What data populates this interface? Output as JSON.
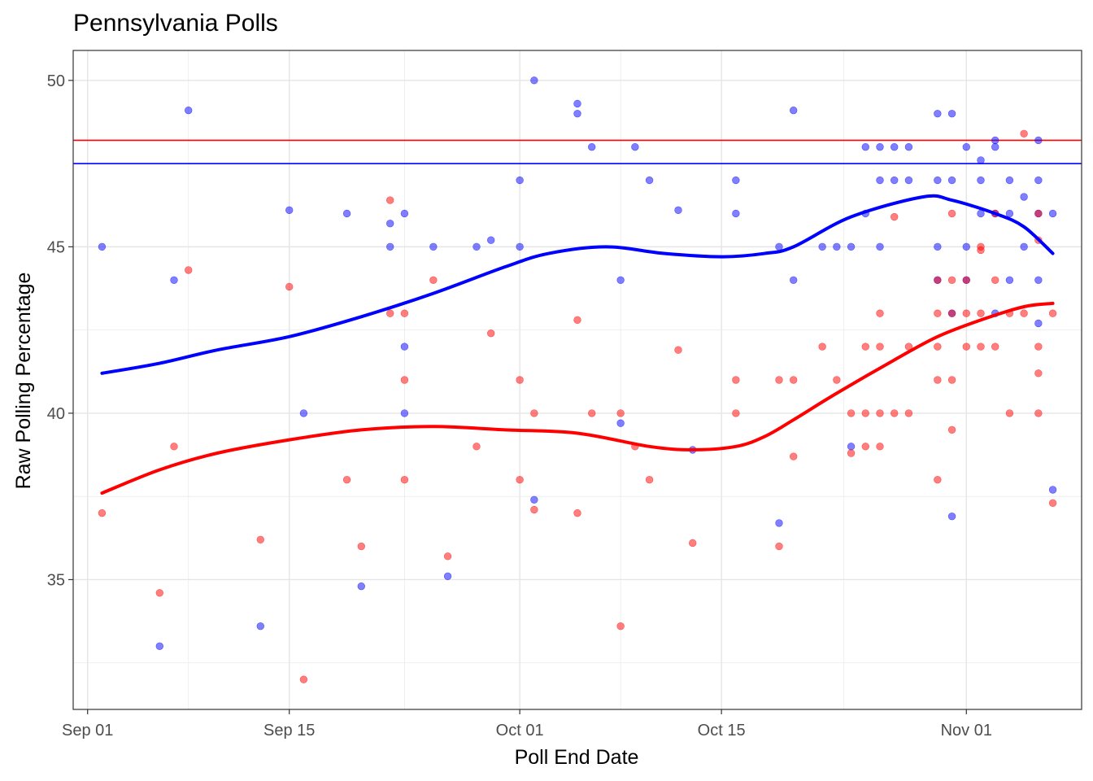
{
  "chart_data": {
    "type": "scatter",
    "title": "Pennsylvania Polls",
    "xlabel": "Poll End Date",
    "ylabel": "Raw Polling Percentage",
    "x_axis_type": "date",
    "xlim": [
      "2020-08-31",
      "2020-11-09"
    ],
    "ylim": [
      31.1,
      50.9
    ],
    "x_ticks": [
      {
        "date": "2020-09-01",
        "label": "Sep 01"
      },
      {
        "date": "2020-09-15",
        "label": "Sep 15"
      },
      {
        "date": "2020-10-01",
        "label": "Oct 01"
      },
      {
        "date": "2020-10-15",
        "label": "Oct 15"
      },
      {
        "date": "2020-11-01",
        "label": "Nov 01"
      }
    ],
    "y_ticks": [
      35,
      40,
      45,
      50
    ],
    "grid": true,
    "legend": "none",
    "colors": {
      "blue": "#0000ff",
      "red": "#ff0000"
    },
    "reference_lines": [
      {
        "color": "#ff0000",
        "y": 48.2
      },
      {
        "color": "#0000ff",
        "y": 47.5
      }
    ],
    "series": [
      {
        "color": "#0000ff",
        "points": [
          [
            "2020-09-02",
            45.0
          ],
          [
            "2020-09-06",
            33.0
          ],
          [
            "2020-09-07",
            44.0
          ],
          [
            "2020-09-08",
            49.1
          ],
          [
            "2020-09-13",
            33.6
          ],
          [
            "2020-09-15",
            46.1
          ],
          [
            "2020-09-16",
            40.0
          ],
          [
            "2020-09-19",
            46.0
          ],
          [
            "2020-09-20",
            34.8
          ],
          [
            "2020-09-22",
            45.0
          ],
          [
            "2020-09-22",
            45.7
          ],
          [
            "2020-09-23",
            46.0
          ],
          [
            "2020-09-23",
            42.0
          ],
          [
            "2020-09-23",
            40.0
          ],
          [
            "2020-09-25",
            45.0
          ],
          [
            "2020-09-26",
            35.1
          ],
          [
            "2020-09-28",
            45.0
          ],
          [
            "2020-09-29",
            45.2
          ],
          [
            "2020-10-01",
            47.0
          ],
          [
            "2020-10-01",
            45.0
          ],
          [
            "2020-10-02",
            50.0
          ],
          [
            "2020-10-02",
            37.4
          ],
          [
            "2020-10-05",
            49.3
          ],
          [
            "2020-10-05",
            49.0
          ],
          [
            "2020-10-06",
            48.0
          ],
          [
            "2020-10-08",
            44.0
          ],
          [
            "2020-10-08",
            39.7
          ],
          [
            "2020-10-09",
            48.0
          ],
          [
            "2020-10-10",
            47.0
          ],
          [
            "2020-10-12",
            46.1
          ],
          [
            "2020-10-13",
            38.9
          ],
          [
            "2020-10-16",
            47.0
          ],
          [
            "2020-10-16",
            46.0
          ],
          [
            "2020-10-19",
            45.0
          ],
          [
            "2020-10-19",
            36.7
          ],
          [
            "2020-10-20",
            49.1
          ],
          [
            "2020-10-20",
            44.0
          ],
          [
            "2020-10-22",
            45.0
          ],
          [
            "2020-10-23",
            45.0
          ],
          [
            "2020-10-24",
            45.0
          ],
          [
            "2020-10-24",
            39.0
          ],
          [
            "2020-10-25",
            48.0
          ],
          [
            "2020-10-25",
            46.0
          ],
          [
            "2020-10-26",
            48.0
          ],
          [
            "2020-10-26",
            47.0
          ],
          [
            "2020-10-26",
            45.0
          ],
          [
            "2020-10-27",
            48.0
          ],
          [
            "2020-10-27",
            47.0
          ],
          [
            "2020-10-28",
            48.0
          ],
          [
            "2020-10-28",
            47.0
          ],
          [
            "2020-10-30",
            49.0
          ],
          [
            "2020-10-30",
            47.0
          ],
          [
            "2020-10-30",
            45.0
          ],
          [
            "2020-10-30",
            44.0
          ],
          [
            "2020-10-31",
            49.0
          ],
          [
            "2020-10-31",
            47.0
          ],
          [
            "2020-10-31",
            43.0
          ],
          [
            "2020-10-31",
            36.9
          ],
          [
            "2020-11-01",
            48.0
          ],
          [
            "2020-11-01",
            45.0
          ],
          [
            "2020-11-01",
            44.0
          ],
          [
            "2020-11-02",
            47.6
          ],
          [
            "2020-11-02",
            47.0
          ],
          [
            "2020-11-02",
            46.0
          ],
          [
            "2020-11-03",
            48.2
          ],
          [
            "2020-11-03",
            48.0
          ],
          [
            "2020-11-03",
            46.0
          ],
          [
            "2020-11-03",
            43.0
          ],
          [
            "2020-11-04",
            47.0
          ],
          [
            "2020-11-04",
            46.0
          ],
          [
            "2020-11-04",
            44.0
          ],
          [
            "2020-11-05",
            46.5
          ],
          [
            "2020-11-05",
            45.0
          ],
          [
            "2020-11-06",
            48.2
          ],
          [
            "2020-11-06",
            47.0
          ],
          [
            "2020-11-06",
            46.0
          ],
          [
            "2020-11-06",
            44.0
          ],
          [
            "2020-11-06",
            42.7
          ],
          [
            "2020-11-07",
            46.0
          ],
          [
            "2020-11-07",
            37.7
          ]
        ],
        "trend": [
          [
            "2020-09-02",
            41.2
          ],
          [
            "2020-09-06",
            41.5
          ],
          [
            "2020-09-10",
            41.9
          ],
          [
            "2020-09-15",
            42.3
          ],
          [
            "2020-09-20",
            42.9
          ],
          [
            "2020-09-25",
            43.6
          ],
          [
            "2020-09-30",
            44.4
          ],
          [
            "2020-10-03",
            44.8
          ],
          [
            "2020-10-07",
            45.0
          ],
          [
            "2020-10-11",
            44.8
          ],
          [
            "2020-10-15",
            44.7
          ],
          [
            "2020-10-18",
            44.8
          ],
          [
            "2020-10-20",
            45.0
          ],
          [
            "2020-10-24",
            45.9
          ],
          [
            "2020-10-29",
            46.5
          ],
          [
            "2020-10-31",
            46.4
          ],
          [
            "2020-11-03",
            46.0
          ],
          [
            "2020-11-05",
            45.6
          ],
          [
            "2020-11-07",
            44.8
          ]
        ]
      },
      {
        "color": "#ff0000",
        "points": [
          [
            "2020-09-02",
            37.0
          ],
          [
            "2020-09-06",
            34.6
          ],
          [
            "2020-09-07",
            39.0
          ],
          [
            "2020-09-08",
            44.3
          ],
          [
            "2020-09-13",
            36.2
          ],
          [
            "2020-09-15",
            43.8
          ],
          [
            "2020-09-16",
            32.0
          ],
          [
            "2020-09-19",
            38.0
          ],
          [
            "2020-09-20",
            36.0
          ],
          [
            "2020-09-22",
            46.4
          ],
          [
            "2020-09-22",
            43.0
          ],
          [
            "2020-09-23",
            43.0
          ],
          [
            "2020-09-23",
            41.0
          ],
          [
            "2020-09-23",
            38.0
          ],
          [
            "2020-09-25",
            44.0
          ],
          [
            "2020-09-26",
            35.7
          ],
          [
            "2020-09-28",
            39.0
          ],
          [
            "2020-09-29",
            42.4
          ],
          [
            "2020-10-01",
            41.0
          ],
          [
            "2020-10-01",
            38.0
          ],
          [
            "2020-10-02",
            40.0
          ],
          [
            "2020-10-02",
            37.1
          ],
          [
            "2020-10-05",
            42.8
          ],
          [
            "2020-10-05",
            37.0
          ],
          [
            "2020-10-06",
            40.0
          ],
          [
            "2020-10-08",
            40.0
          ],
          [
            "2020-10-08",
            33.6
          ],
          [
            "2020-10-09",
            39.0
          ],
          [
            "2020-10-10",
            38.0
          ],
          [
            "2020-10-12",
            41.9
          ],
          [
            "2020-10-13",
            36.1
          ],
          [
            "2020-10-16",
            41.0
          ],
          [
            "2020-10-16",
            40.0
          ],
          [
            "2020-10-19",
            41.0
          ],
          [
            "2020-10-19",
            36.0
          ],
          [
            "2020-10-20",
            41.0
          ],
          [
            "2020-10-20",
            38.7
          ],
          [
            "2020-10-22",
            42.0
          ],
          [
            "2020-10-23",
            41.0
          ],
          [
            "2020-10-24",
            40.0
          ],
          [
            "2020-10-24",
            38.8
          ],
          [
            "2020-10-25",
            42.0
          ],
          [
            "2020-10-25",
            40.0
          ],
          [
            "2020-10-25",
            39.0
          ],
          [
            "2020-10-26",
            43.0
          ],
          [
            "2020-10-26",
            42.0
          ],
          [
            "2020-10-26",
            40.0
          ],
          [
            "2020-10-26",
            39.0
          ],
          [
            "2020-10-27",
            45.9
          ],
          [
            "2020-10-27",
            40.0
          ],
          [
            "2020-10-28",
            42.0
          ],
          [
            "2020-10-28",
            40.0
          ],
          [
            "2020-10-30",
            44.0
          ],
          [
            "2020-10-30",
            43.0
          ],
          [
            "2020-10-30",
            42.0
          ],
          [
            "2020-10-30",
            41.0
          ],
          [
            "2020-10-30",
            38.0
          ],
          [
            "2020-10-31",
            46.0
          ],
          [
            "2020-10-31",
            44.0
          ],
          [
            "2020-10-31",
            43.0
          ],
          [
            "2020-10-31",
            41.0
          ],
          [
            "2020-10-31",
            39.5
          ],
          [
            "2020-11-01",
            44.0
          ],
          [
            "2020-11-01",
            43.0
          ],
          [
            "2020-11-01",
            42.0
          ],
          [
            "2020-11-02",
            45.0
          ],
          [
            "2020-11-02",
            44.9
          ],
          [
            "2020-11-02",
            43.0
          ],
          [
            "2020-11-02",
            42.0
          ],
          [
            "2020-11-03",
            46.0
          ],
          [
            "2020-11-03",
            44.0
          ],
          [
            "2020-11-03",
            42.0
          ],
          [
            "2020-11-04",
            43.0
          ],
          [
            "2020-11-04",
            40.0
          ],
          [
            "2020-11-05",
            48.4
          ],
          [
            "2020-11-05",
            43.0
          ],
          [
            "2020-11-06",
            46.0
          ],
          [
            "2020-11-06",
            45.2
          ],
          [
            "2020-11-06",
            42.0
          ],
          [
            "2020-11-06",
            41.2
          ],
          [
            "2020-11-06",
            40.0
          ],
          [
            "2020-11-07",
            43.0
          ],
          [
            "2020-11-07",
            37.3
          ]
        ],
        "trend": [
          [
            "2020-09-02",
            37.6
          ],
          [
            "2020-09-06",
            38.3
          ],
          [
            "2020-09-10",
            38.8
          ],
          [
            "2020-09-15",
            39.2
          ],
          [
            "2020-09-20",
            39.5
          ],
          [
            "2020-09-25",
            39.6
          ],
          [
            "2020-09-30",
            39.5
          ],
          [
            "2020-10-05",
            39.4
          ],
          [
            "2020-10-10",
            39.0
          ],
          [
            "2020-10-13",
            38.9
          ],
          [
            "2020-10-16",
            39.0
          ],
          [
            "2020-10-18",
            39.3
          ],
          [
            "2020-10-20",
            39.8
          ],
          [
            "2020-10-23",
            40.6
          ],
          [
            "2020-10-27",
            41.6
          ],
          [
            "2020-10-30",
            42.3
          ],
          [
            "2020-11-02",
            42.8
          ],
          [
            "2020-11-05",
            43.2
          ],
          [
            "2020-11-07",
            43.3
          ]
        ]
      }
    ]
  }
}
